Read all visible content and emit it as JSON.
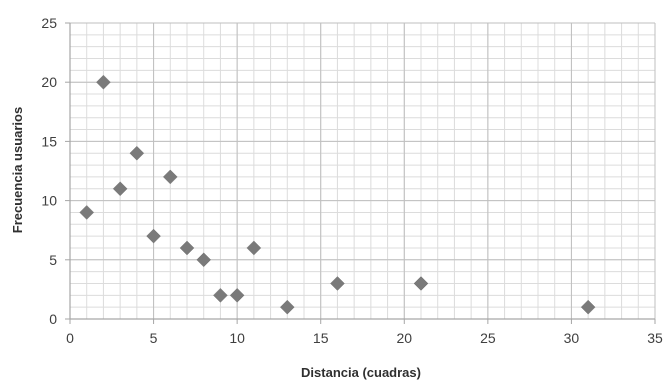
{
  "chart_data": {
    "type": "scatter",
    "title": "",
    "xlabel": "Distancia (cuadras)",
    "ylabel": "Frecuencia  usuarios",
    "xlim": [
      0,
      35
    ],
    "ylim": [
      0,
      25
    ],
    "x_ticks": [
      0,
      5,
      10,
      15,
      20,
      25,
      30,
      35
    ],
    "y_ticks": [
      0,
      5,
      10,
      15,
      20,
      25
    ],
    "x_tick_labels": [
      "0",
      "5",
      "10",
      "15",
      "20",
      "25",
      "30",
      "35"
    ],
    "y_tick_labels": [
      "0",
      "5",
      "10",
      "15",
      "20",
      "25"
    ],
    "grid": true,
    "major_grid_step": {
      "x": 5,
      "y": 5
    },
    "minor_grid_step": {
      "x": 1,
      "y": 1
    },
    "marker": "diamond",
    "colors": {
      "marker": "#7a7a7a",
      "major_grid": "#bfbfbf",
      "minor_grid": "#dcdcdc",
      "axis": "#a6a6a6"
    },
    "points": [
      {
        "x": 1,
        "y": 9
      },
      {
        "x": 2,
        "y": 20
      },
      {
        "x": 3,
        "y": 11
      },
      {
        "x": 4,
        "y": 14
      },
      {
        "x": 5,
        "y": 7
      },
      {
        "x": 6,
        "y": 12
      },
      {
        "x": 7,
        "y": 6
      },
      {
        "x": 8,
        "y": 5
      },
      {
        "x": 9,
        "y": 2
      },
      {
        "x": 10,
        "y": 2
      },
      {
        "x": 11,
        "y": 6
      },
      {
        "x": 13,
        "y": 1
      },
      {
        "x": 16,
        "y": 3
      },
      {
        "x": 21,
        "y": 3
      },
      {
        "x": 31,
        "y": 1
      }
    ]
  }
}
